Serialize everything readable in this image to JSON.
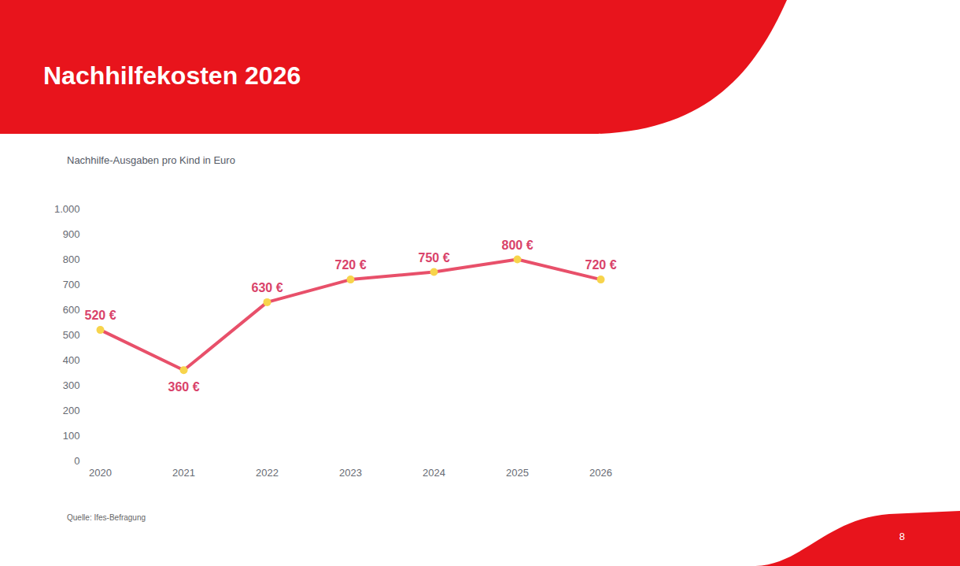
{
  "chart_data": {
    "type": "line",
    "title": "Nachhilfekosten 2026",
    "subtitle": "Nachhilfe-Ausgaben pro Kind in Euro",
    "categories": [
      "2020",
      "2021",
      "2022",
      "2023",
      "2024",
      "2025",
      "2026"
    ],
    "values": [
      520,
      360,
      630,
      720,
      750,
      800,
      720
    ],
    "value_labels": [
      "520 €",
      "360 €",
      "630 €",
      "720 €",
      "750 €",
      "800 €",
      "720 €"
    ],
    "data_labels": true,
    "color": "#e8506a",
    "marker": "circle",
    "ylim": [
      0,
      1000
    ],
    "yticks": [
      0,
      100,
      200,
      300,
      400,
      500,
      600,
      700,
      800,
      900,
      {
        "value": 1000,
        "label": "1.000"
      }
    ],
    "grid": false,
    "tick_labels": true,
    "source": "Quelle: Ifes-Befragung",
    "page_number": "8"
  }
}
